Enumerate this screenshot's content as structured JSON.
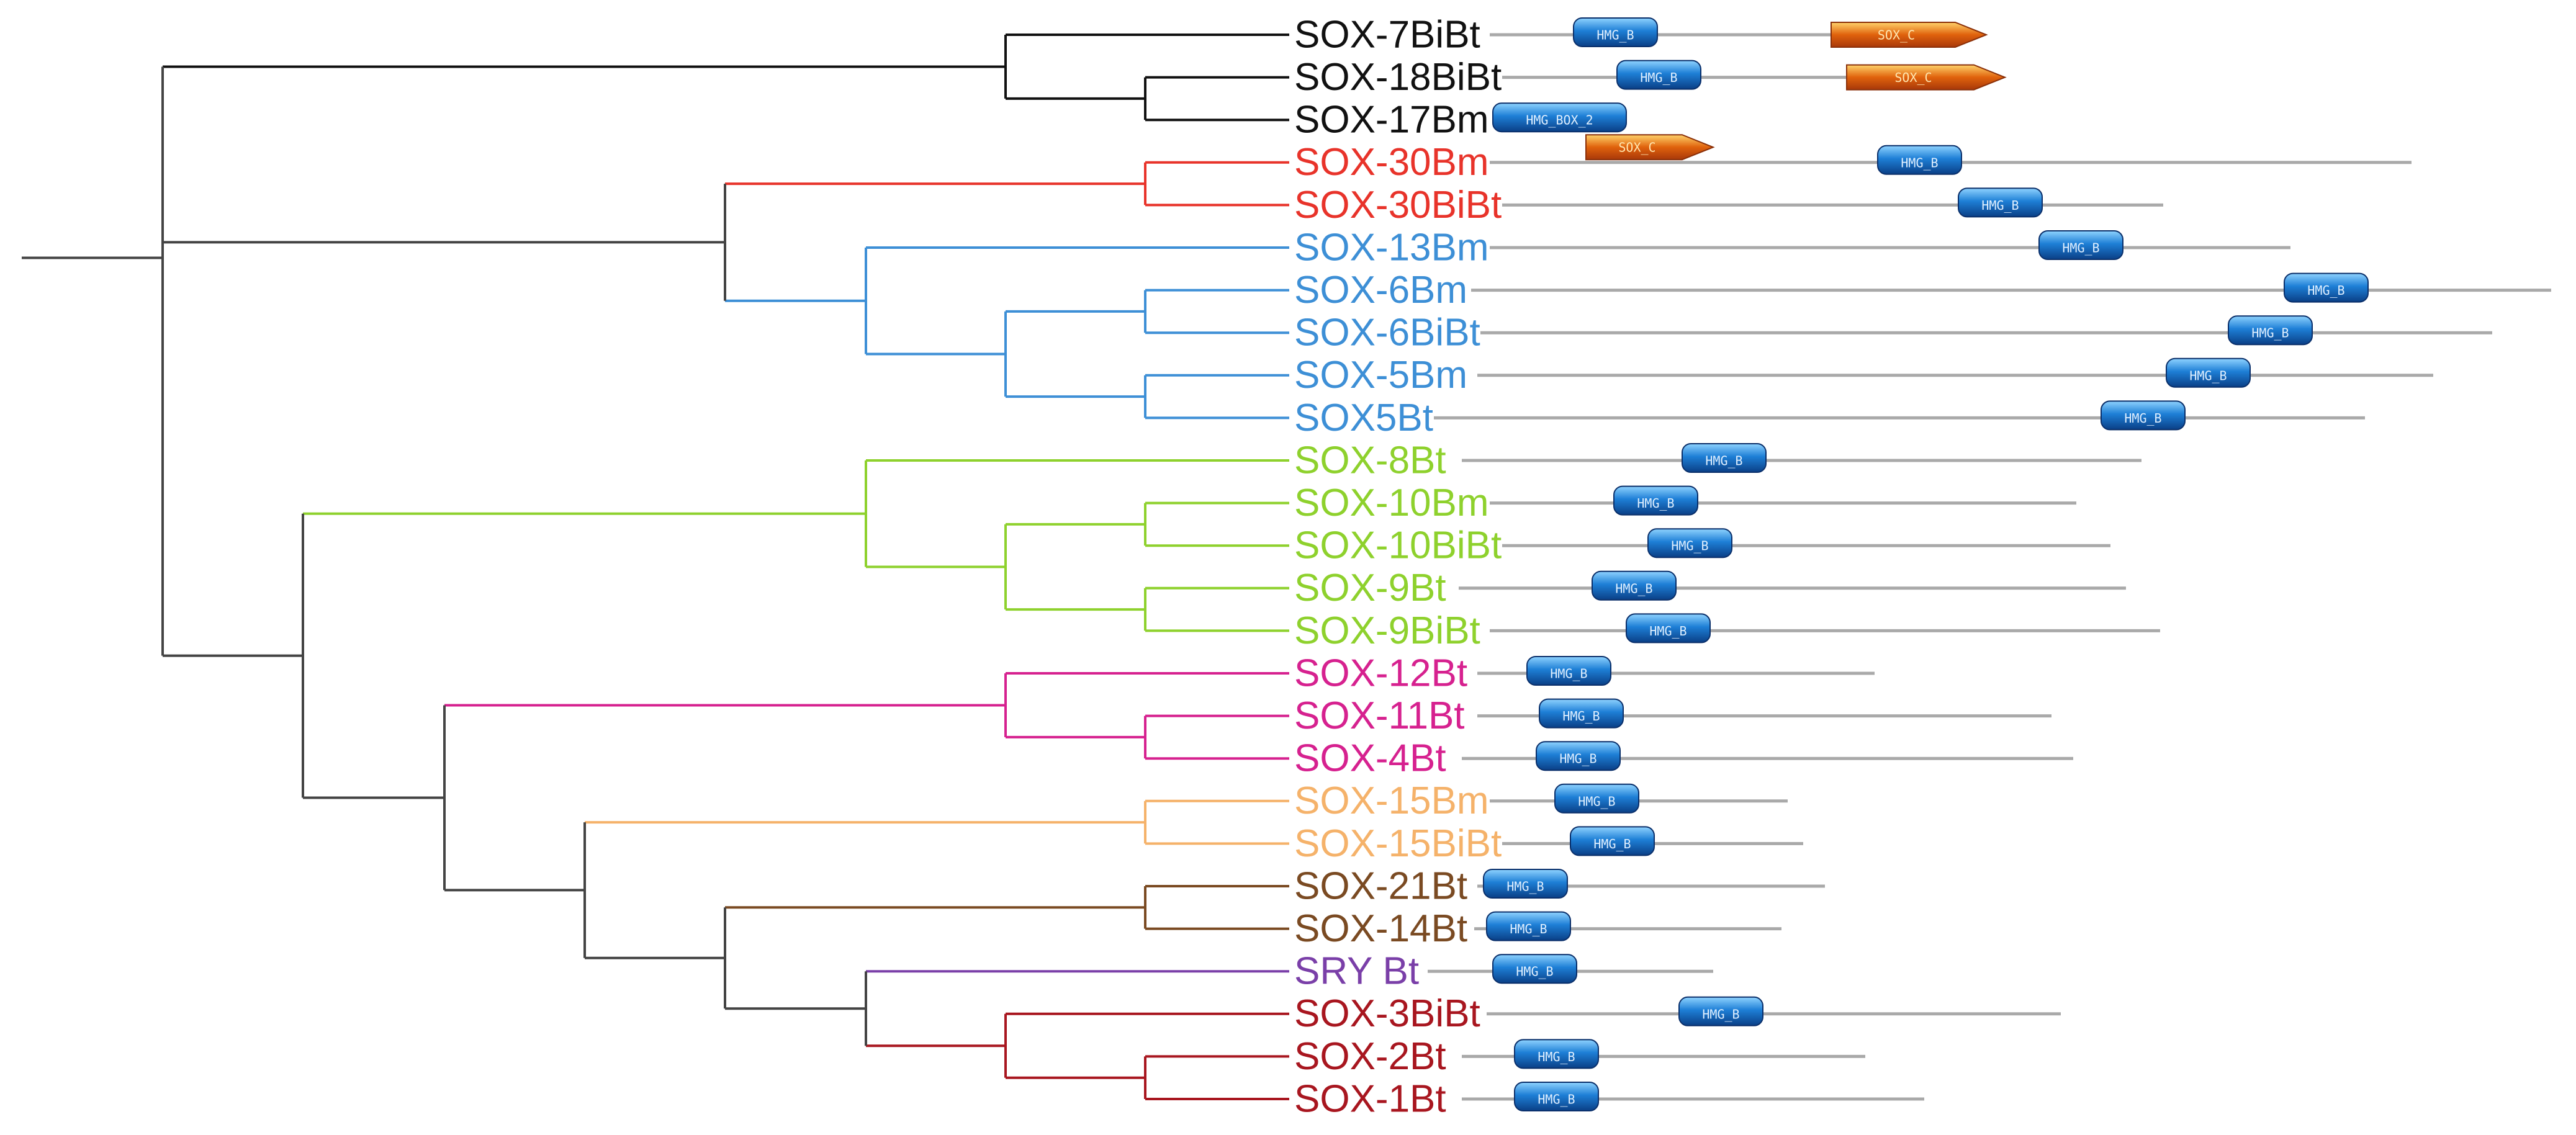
{
  "figure": {
    "type": "phylogenetic_tree_with_domains",
    "domain_legend": {
      "hmg": {
        "label": "HMG_B",
        "color": "#1e7fd6"
      },
      "hmg_box2": {
        "label": "HMG_BOX_2",
        "color": "#1e7fd6"
      },
      "sox_c": {
        "label": "SOX_C",
        "color": "#e0620c"
      }
    },
    "clade_colors": {
      "black": "#111111",
      "red": "#e8332a",
      "blue": "#3d8fd6",
      "green": "#8ed12d",
      "magenta": "#d6218f",
      "peach": "#f5b26a",
      "brown": "#7a4a22",
      "purple": "#7a3fa8",
      "darkred": "#a8161f",
      "gray": "#444444"
    },
    "leaves": [
      {
        "label": "SOX-7BiBt",
        "clade": "black"
      },
      {
        "label": "SOX-18BiBt",
        "clade": "black"
      },
      {
        "label": "SOX-17Bm",
        "clade": "black"
      },
      {
        "label": "SOX-30Bm",
        "clade": "red"
      },
      {
        "label": "SOX-30BiBt",
        "clade": "red"
      },
      {
        "label": "SOX-13Bm",
        "clade": "blue"
      },
      {
        "label": "SOX-6Bm",
        "clade": "blue"
      },
      {
        "label": "SOX-6BiBt",
        "clade": "blue"
      },
      {
        "label": "SOX-5Bm",
        "clade": "blue"
      },
      {
        "label": "SOX5Bt",
        "clade": "blue"
      },
      {
        "label": "SOX-8Bt",
        "clade": "green"
      },
      {
        "label": "SOX-10Bm",
        "clade": "green"
      },
      {
        "label": "SOX-10BiBt",
        "clade": "green"
      },
      {
        "label": "SOX-9Bt",
        "clade": "green"
      },
      {
        "label": "SOX-9BiBt",
        "clade": "green"
      },
      {
        "label": "SOX-12Bt",
        "clade": "magenta"
      },
      {
        "label": "SOX-11Bt",
        "clade": "magenta"
      },
      {
        "label": "SOX-4Bt",
        "clade": "magenta"
      },
      {
        "label": "SOX-15Bm",
        "clade": "peach"
      },
      {
        "label": "SOX-15BiBt",
        "clade": "peach"
      },
      {
        "label": "SOX-21Bt",
        "clade": "brown"
      },
      {
        "label": "SOX-14Bt",
        "clade": "brown"
      },
      {
        "label": "SRY Bt",
        "clade": "purple"
      },
      {
        "label": "SOX-3BiBt",
        "clade": "darkred"
      },
      {
        "label": "SOX-2Bt",
        "clade": "darkred"
      },
      {
        "label": "SOX-1Bt",
        "clade": "darkred"
      }
    ]
  }
}
